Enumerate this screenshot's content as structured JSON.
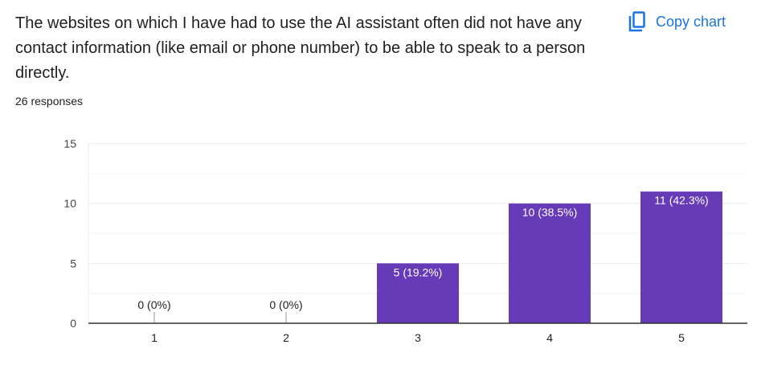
{
  "header": {
    "title": "The websites on which I have had to use the AI assistant often did not have any contact information (like email or phone number) to be able to speak to a person directly.",
    "responses": "26 responses",
    "copy_label": "Copy chart",
    "copy_icon": "copy-icon"
  },
  "colors": {
    "bar": "#673ab7",
    "accent": "#1a73e8"
  },
  "chart_data": {
    "type": "bar",
    "categories": [
      "1",
      "2",
      "3",
      "4",
      "5"
    ],
    "values": [
      0,
      0,
      5,
      10,
      11
    ],
    "data_labels": [
      "0 (0%)",
      "0 (0%)",
      "5 (19.2%)",
      "10 (38.5%)",
      "11 (42.3%)"
    ],
    "yticks": [
      0,
      5,
      10,
      15
    ],
    "ylim": [
      0,
      15
    ],
    "grid": true
  }
}
